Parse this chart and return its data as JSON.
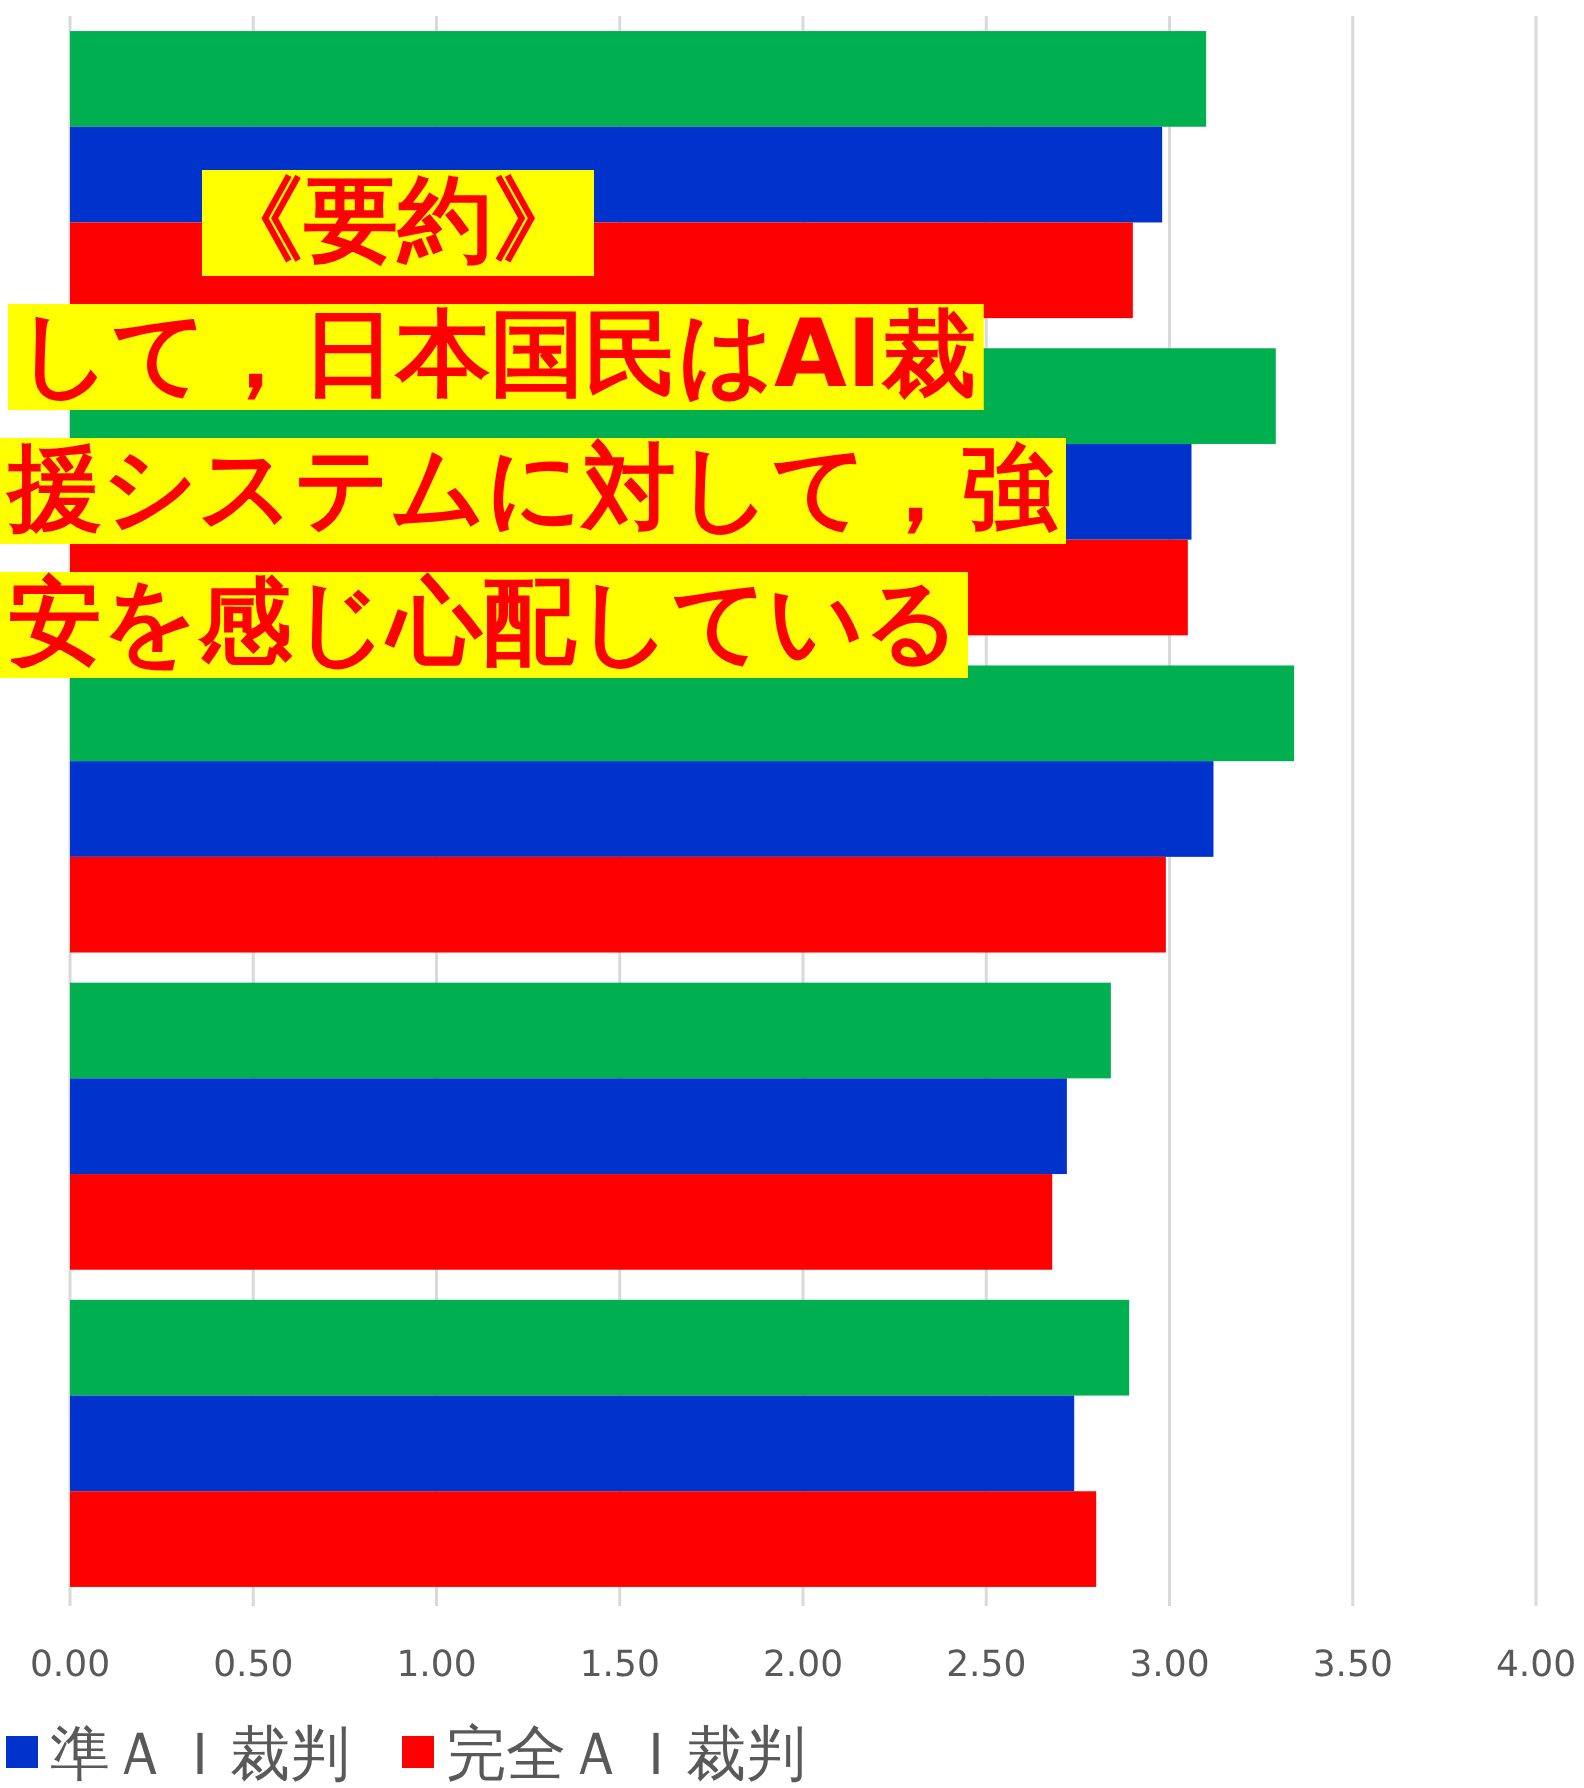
{
  "chart_data": {
    "type": "bar",
    "orientation": "horizontal",
    "categories": [
      null,
      null,
      null,
      null,
      null
    ],
    "series": [
      {
        "color": "#00b050",
        "values": [
          3.1,
          3.29,
          3.34,
          2.84,
          2.89
        ]
      },
      {
        "name": "準ＡＩ裁判",
        "color": "#0033cc",
        "values": [
          2.98,
          3.06,
          3.12,
          2.72,
          2.74
        ]
      },
      {
        "name": "完全ＡＩ裁判",
        "color": "#ff0000",
        "values": [
          2.9,
          3.05,
          2.99,
          2.68,
          2.8
        ]
      }
    ],
    "xlim": [
      0,
      4
    ],
    "xticks": [
      {
        "value": 0,
        "label": "0.00"
      },
      {
        "value": 0.5,
        "label": "0.50"
      },
      {
        "value": 1,
        "label": "1.00"
      },
      {
        "value": 1.5,
        "label": "1.50"
      },
      {
        "value": 2,
        "label": "2.00"
      },
      {
        "value": 2.5,
        "label": "2.50"
      },
      {
        "value": 3,
        "label": "3.00"
      },
      {
        "value": 3.5,
        "label": "3.50"
      },
      {
        "value": 4,
        "label": "4.00"
      }
    ],
    "grid": "x",
    "legend": "bottom",
    "tick_labels": "x",
    "annotations": [
      "《要約》",
      "して，日本国民はAI裁",
      "援システムに対して，強",
      "安を感じ心配している"
    ]
  }
}
